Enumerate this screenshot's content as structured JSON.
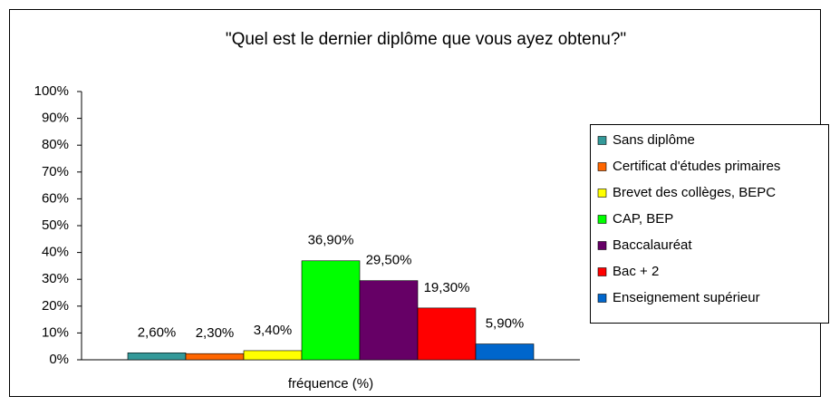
{
  "chart_data": {
    "type": "bar",
    "title": "\"Quel est le dernier diplôme que vous ayez obtenu?\"",
    "categories": [
      "fréquence (%)"
    ],
    "series": [
      {
        "name": "Sans diplôme",
        "color": "#339999",
        "values": [
          2.6
        ],
        "value_labels": [
          "2,60%"
        ]
      },
      {
        "name": "Certificat d'études primaires",
        "color": "#FF6600",
        "values": [
          2.3
        ],
        "value_labels": [
          "2,30%"
        ]
      },
      {
        "name": "Brevet des collèges, BEPC",
        "color": "#FFFF00",
        "values": [
          3.4
        ],
        "value_labels": [
          "3,40%"
        ]
      },
      {
        "name": "CAP, BEP",
        "color": "#00FF00",
        "values": [
          36.9
        ],
        "value_labels": [
          "36,90%"
        ]
      },
      {
        "name": "Baccalauréat",
        "color": "#660066",
        "values": [
          29.5
        ],
        "value_labels": [
          "29,50%"
        ]
      },
      {
        "name": "Bac + 2",
        "color": "#FF0000",
        "values": [
          19.3
        ],
        "value_labels": [
          "19,30%"
        ]
      },
      {
        "name": "Enseignement supérieur",
        "color": "#0066CC",
        "values": [
          5.9
        ],
        "value_labels": [
          "5,90%"
        ]
      }
    ],
    "ylim": [
      0,
      100
    ],
    "yticks": [
      {
        "value": 0,
        "label": "0%"
      },
      {
        "value": 10,
        "label": "10%"
      },
      {
        "value": 20,
        "label": "20%"
      },
      {
        "value": 30,
        "label": "30%"
      },
      {
        "value": 40,
        "label": "40%"
      },
      {
        "value": 50,
        "label": "50%"
      },
      {
        "value": 60,
        "label": "60%"
      },
      {
        "value": 70,
        "label": "70%"
      },
      {
        "value": 80,
        "label": "80%"
      },
      {
        "value": 90,
        "label": "90%"
      },
      {
        "value": 100,
        "label": "100%"
      }
    ],
    "grid": false,
    "legend": "right"
  }
}
